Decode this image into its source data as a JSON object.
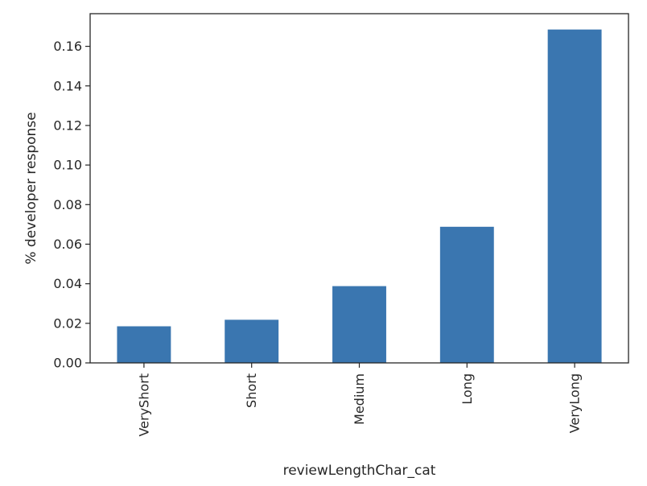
{
  "chart_data": {
    "type": "bar",
    "categories": [
      "VeryShort",
      "Short",
      "Medium",
      "Long",
      "VeryLong"
    ],
    "values": [
      0.0185,
      0.0218,
      0.0388,
      0.0688,
      0.1685
    ],
    "title": "",
    "xlabel": "reviewLengthChar_cat",
    "ylabel": "% developer response",
    "ylim": [
      0,
      0.1765
    ],
    "yticks": [
      "0.00",
      "0.02",
      "0.04",
      "0.06",
      "0.08",
      "0.10",
      "0.12",
      "0.14",
      "0.16"
    ],
    "grid": false,
    "legend": "none",
    "bar_color": "#3a76b0",
    "axis_color": "#262626"
  }
}
